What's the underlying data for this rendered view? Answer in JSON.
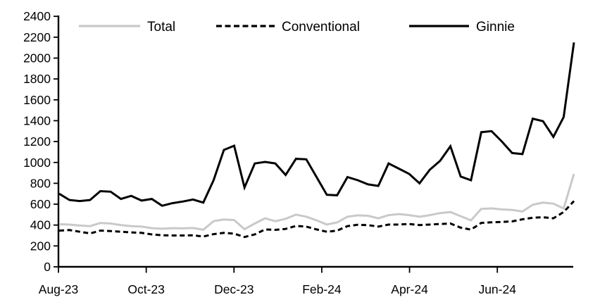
{
  "chart_data": {
    "type": "line",
    "title": "",
    "x_axis": {
      "tick_labels": [
        "Aug-23",
        "Oct-23",
        "Dec-23",
        "Feb-24",
        "Apr-24",
        "Jun-24"
      ]
    },
    "y_axis": {
      "min": 0,
      "max": 2400,
      "tick_interval": 200,
      "tick_labels": [
        "0",
        "200",
        "400",
        "600",
        "800",
        "1000",
        "1200",
        "1400",
        "1600",
        "1800",
        "2000",
        "2200",
        "2400"
      ]
    },
    "legend": {
      "position": "top"
    },
    "grid": false,
    "background_color": "#ffffff",
    "axis_color": "#000000",
    "series": [
      {
        "name": "Total",
        "color": "#c9c9c9",
        "line_style": "solid",
        "values": [
          408,
          405,
          395,
          390,
          420,
          415,
          400,
          390,
          385,
          370,
          365,
          370,
          368,
          372,
          355,
          437,
          453,
          448,
          360,
          415,
          465,
          437,
          460,
          500,
          480,
          445,
          405,
          425,
          480,
          493,
          489,
          465,
          495,
          505,
          495,
          480,
          495,
          515,
          525,
          485,
          445,
          555,
          560,
          550,
          545,
          530,
          595,
          615,
          605,
          560,
          890
        ]
      },
      {
        "name": "Conventional",
        "color": "#000000",
        "line_style": "dashed",
        "values": [
          347,
          352,
          336,
          320,
          347,
          343,
          336,
          330,
          325,
          310,
          302,
          300,
          300,
          302,
          290,
          313,
          325,
          318,
          285,
          310,
          358,
          354,
          363,
          392,
          385,
          358,
          336,
          347,
          390,
          403,
          399,
          385,
          405,
          405,
          410,
          400,
          405,
          410,
          415,
          375,
          356,
          421,
          426,
          430,
          435,
          455,
          470,
          475,
          465,
          525,
          630
        ]
      },
      {
        "name": "Ginnie",
        "color": "#000000",
        "line_style": "solid",
        "values": [
          700,
          640,
          630,
          640,
          725,
          720,
          650,
          680,
          635,
          650,
          585,
          610,
          625,
          645,
          615,
          830,
          1120,
          1160,
          760,
          990,
          1005,
          990,
          880,
          1035,
          1030,
          860,
          690,
          685,
          860,
          830,
          790,
          775,
          990,
          940,
          890,
          800,
          930,
          1015,
          1155,
          865,
          830,
          1290,
          1300,
          1200,
          1090,
          1080,
          1420,
          1395,
          1245,
          1435,
          2150
        ]
      }
    ]
  }
}
